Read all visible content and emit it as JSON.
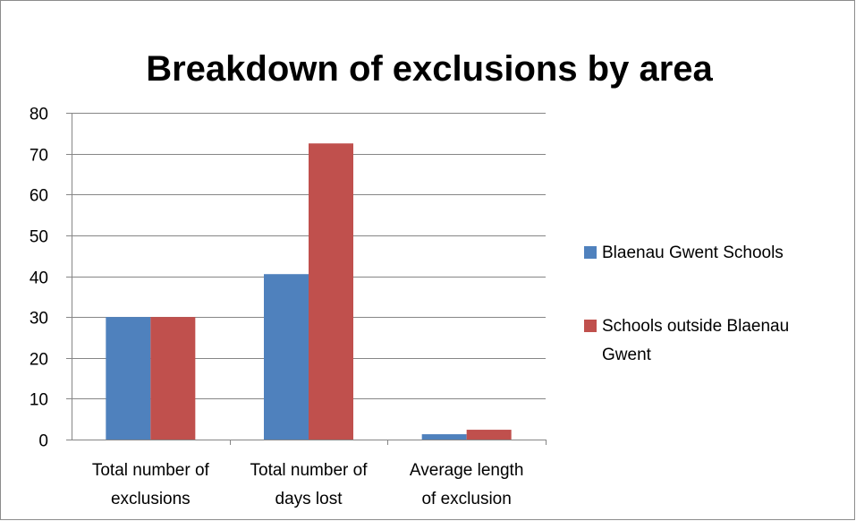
{
  "chart_data": {
    "type": "bar",
    "title": "Breakdown of exclusions by area",
    "xlabel": "",
    "ylabel": "",
    "categories": [
      [
        "Total number of",
        "exclusions"
      ],
      [
        "Total number of",
        "days lost"
      ],
      [
        "Average length",
        "of exclusion"
      ]
    ],
    "series": [
      {
        "name": "Blaenau Gwent Schools",
        "color": "#4F81BD",
        "values": [
          30,
          40.5,
          1.3
        ]
      },
      {
        "name": "Schools outside Blaenau Gwent",
        "color": "#C0504D",
        "values": [
          30,
          72.5,
          2.4
        ]
      }
    ],
    "legend_labels": [
      [
        "Blaenau Gwent Schools"
      ],
      [
        "Schools outside Blaenau",
        "Gwent"
      ]
    ],
    "ylim": [
      0,
      80
    ],
    "yticks": [
      0,
      10,
      20,
      30,
      40,
      50,
      60,
      70,
      80
    ],
    "grid": true,
    "legend_position": "right"
  }
}
